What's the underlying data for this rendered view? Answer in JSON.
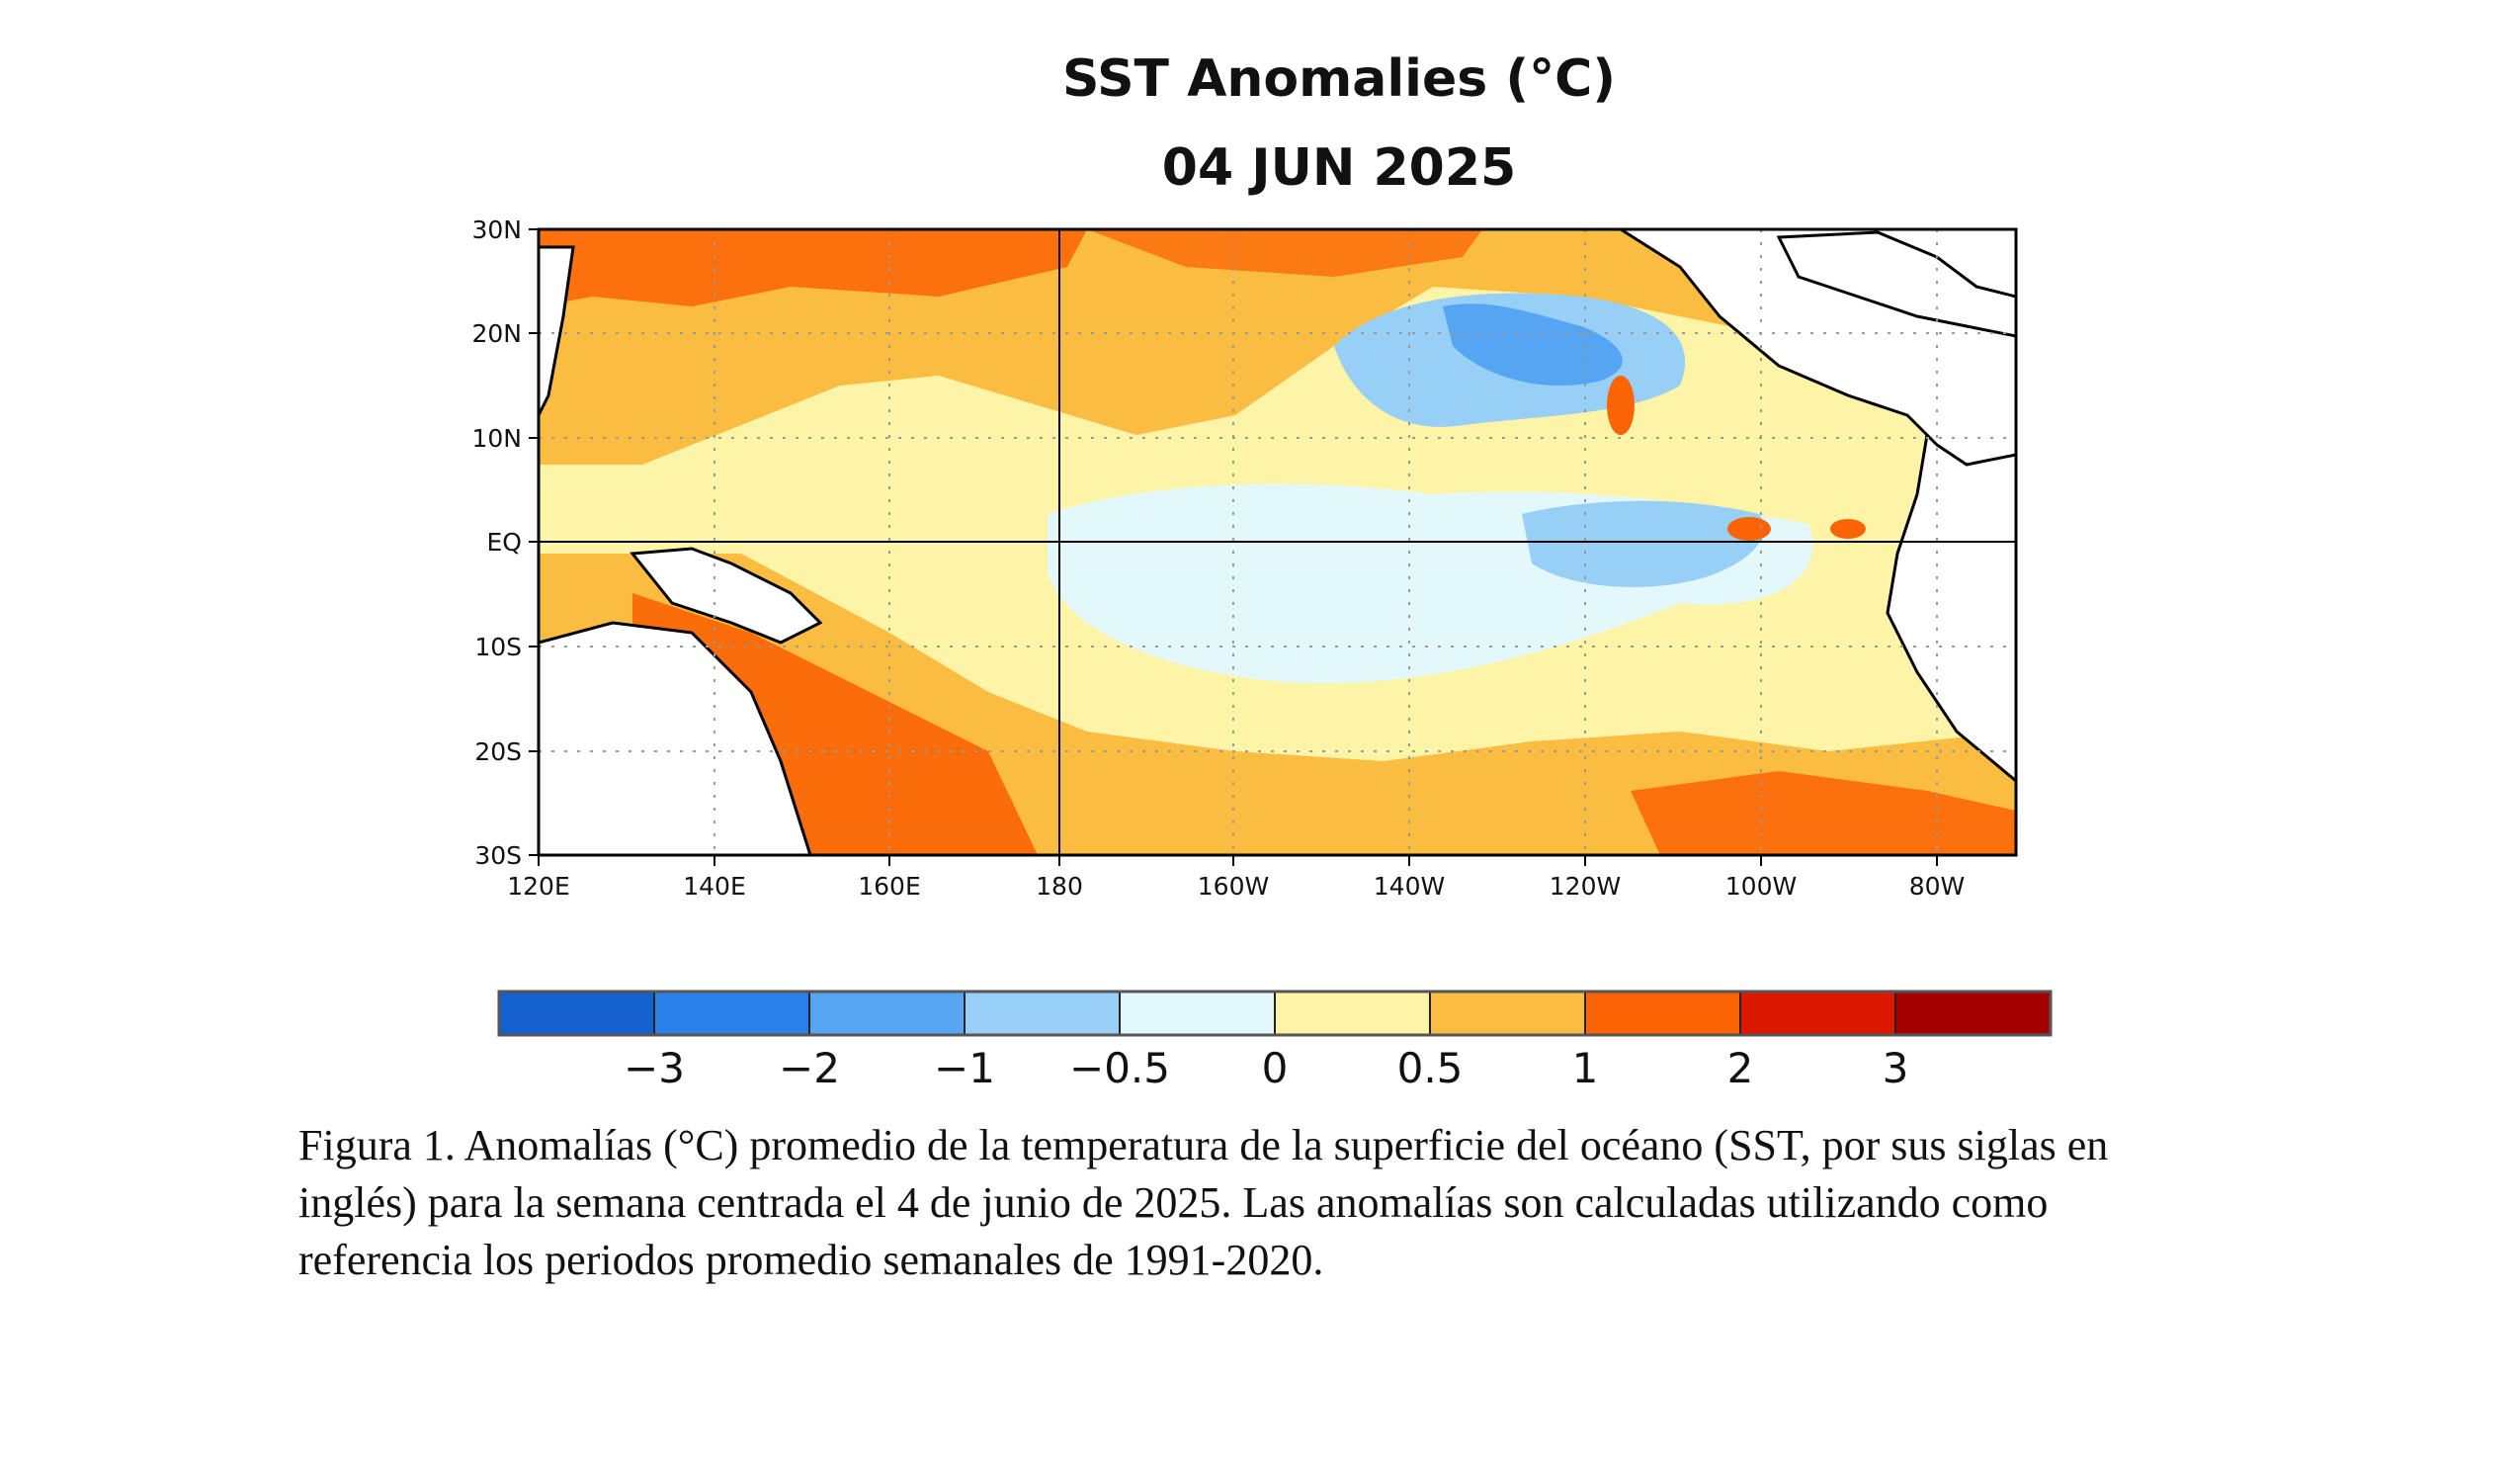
{
  "title": "SST Anomalies (°C)",
  "date": "04 JUN 2025",
  "y_ticks": [
    "30N",
    "20N",
    "10N",
    "EQ",
    "10S",
    "20S",
    "30S"
  ],
  "x_ticks": [
    "120E",
    "140E",
    "160E",
    "180",
    "160W",
    "140W",
    "120W",
    "100W",
    "80W"
  ],
  "colorbar": {
    "colors": [
      "#1560cf",
      "#2b7fe8",
      "#55a5f2",
      "#97cff7",
      "#e3f8fb",
      "#fdf4a8",
      "#fbbc42",
      "#fb6405",
      "#dd1800",
      "#a50000"
    ],
    "labels": [
      "−3",
      "−2",
      "−1",
      "−0.5",
      "0",
      "0.5",
      "1",
      "2",
      "3"
    ]
  },
  "caption": "Figura 1. Anomalías (°C) promedio de la temperatura de la superficie del océano (SST, por sus siglas en inglés) para la semana centrada el 4 de junio de 2025. Las anomalías son calculadas utilizando como referencia los periodos promedio semanales de 1991-2020."
}
